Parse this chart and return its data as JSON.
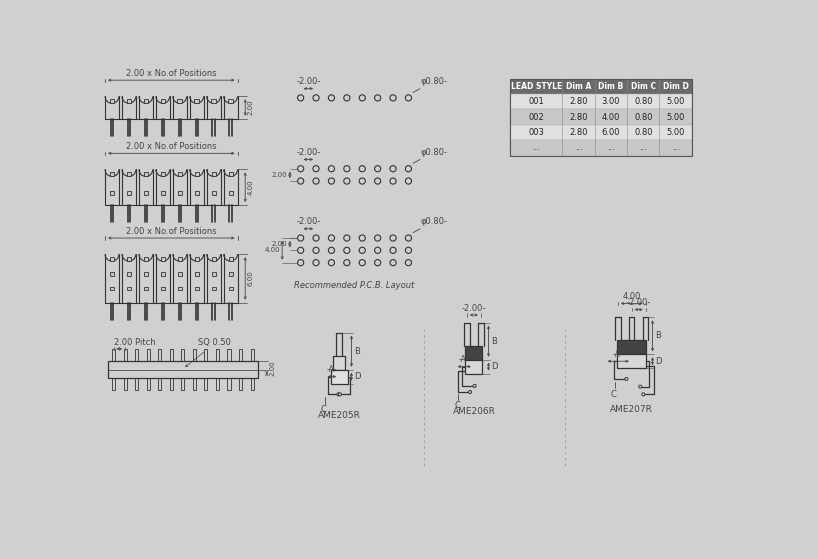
{
  "bg_color": "#d0d0d0",
  "line_color": "#333333",
  "dim_color": "#444444",
  "table_header_bg": "#6a6a6a",
  "table_row_bg_light": "#e0e0e0",
  "table_row_bg_dark": "#c8c8c8",
  "table_header_color": "#ffffff",
  "table_row_color": "#222222",
  "table_data": {
    "headers": [
      "LEAD STYLE",
      "Dim A",
      "Dim B",
      "Dim C",
      "Dim D"
    ],
    "rows": [
      [
        "001",
        "2.80",
        "3.00",
        "0.80",
        "5.00"
      ],
      [
        "002",
        "2.80",
        "4.00",
        "0.80",
        "5.00"
      ],
      [
        "003",
        "2.80",
        "6.00",
        "0.80",
        "5.00"
      ],
      [
        "...",
        "...",
        "...",
        "...",
        "..."
      ]
    ]
  },
  "label_fontsize": 6.0,
  "small_fontsize": 5.0
}
